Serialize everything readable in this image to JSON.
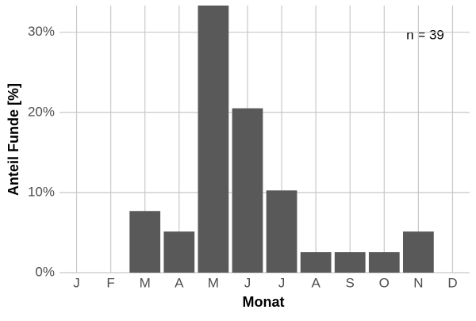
{
  "chart_data": {
    "type": "bar",
    "x_label": "Monat",
    "y_label": "Anteil Funde [%]",
    "annotation": "n = 39",
    "categories": [
      "J",
      "F",
      "M",
      "A",
      "M",
      "J",
      "J",
      "A",
      "S",
      "O",
      "N",
      "D"
    ],
    "values": [
      0,
      0,
      7.69,
      5.13,
      33.33,
      20.51,
      10.26,
      2.56,
      2.56,
      2.56,
      5.13,
      0
    ],
    "color": "#595959",
    "ylim": [
      0,
      33.33
    ],
    "yticks": [
      {
        "value": 0,
        "label": "0%"
      },
      {
        "value": 10,
        "label": "10%"
      },
      {
        "value": 20,
        "label": "20%"
      },
      {
        "value": 30,
        "label": "30%"
      }
    ],
    "grid": true,
    "grid_color": "#c8c8c8"
  }
}
